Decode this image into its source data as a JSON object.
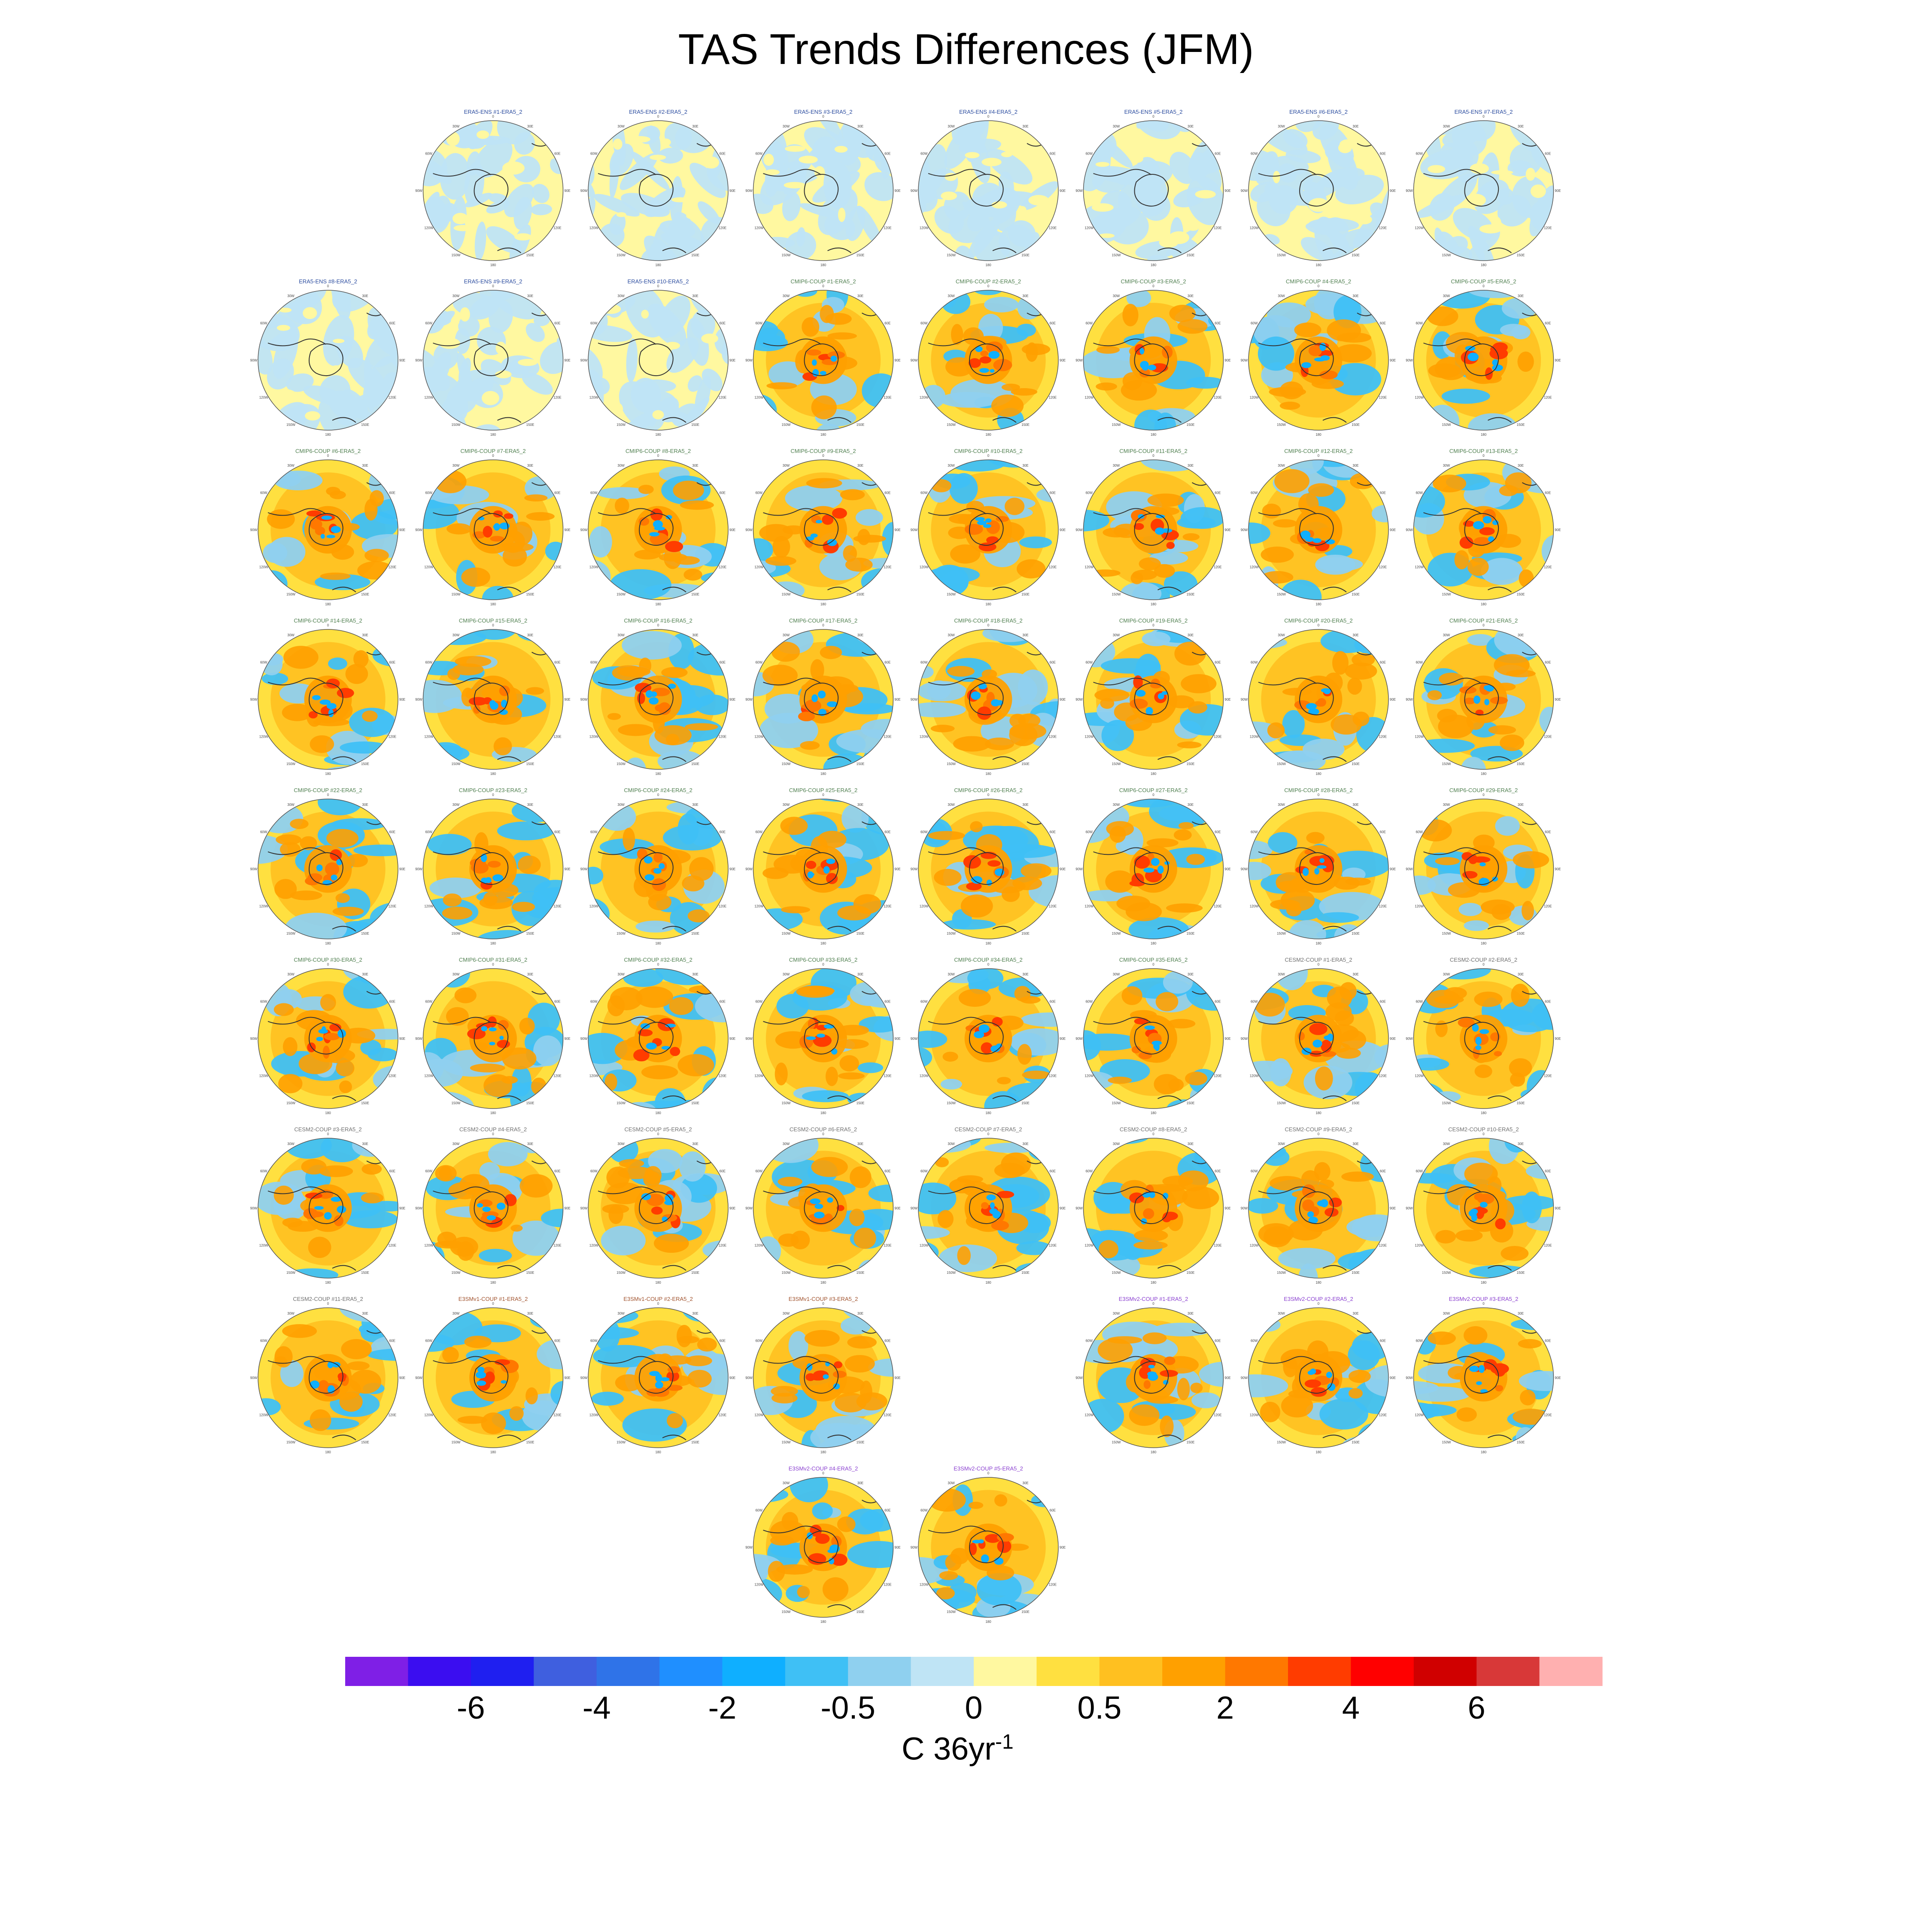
{
  "chart_data": {
    "type": "heatmap",
    "title": "TAS Trends Differences (JFM)",
    "colorbar": {
      "units_base": "C 36yr",
      "units_exponent": "-1",
      "tick_labels": [
        "-6",
        "-4",
        "-2",
        "-0.5",
        "0",
        "0.5",
        "2",
        "4",
        "6"
      ],
      "colors": [
        "#7f1fe6",
        "#3b0df0",
        "#1f1ff0",
        "#3f5fdf",
        "#2f73e8",
        "#1f8fff",
        "#0fafff",
        "#3fc0f5",
        "#8fd0ef",
        "#bfe4f5",
        "#fff8a0",
        "#ffe040",
        "#ffc020",
        "#ffa000",
        "#ff7800",
        "#ff3c00",
        "#ff0000",
        "#d00000",
        "#d83838",
        "#ffb0b0"
      ]
    },
    "panels": [
      {
        "group": "era",
        "label": "ERA5-ENS   #1-ERA5_2",
        "row": 0,
        "col": 1,
        "pattern": "weak"
      },
      {
        "group": "era",
        "label": "ERA5-ENS   #2-ERA5_2",
        "row": 0,
        "col": 2,
        "pattern": "weak"
      },
      {
        "group": "era",
        "label": "ERA5-ENS   #3-ERA5_2",
        "row": 0,
        "col": 3,
        "pattern": "weak"
      },
      {
        "group": "era",
        "label": "ERA5-ENS   #4-ERA5_2",
        "row": 0,
        "col": 4,
        "pattern": "weak"
      },
      {
        "group": "era",
        "label": "ERA5-ENS   #5-ERA5_2",
        "row": 0,
        "col": 5,
        "pattern": "weak"
      },
      {
        "group": "era",
        "label": "ERA5-ENS   #6-ERA5_2",
        "row": 0,
        "col": 6,
        "pattern": "weak"
      },
      {
        "group": "era",
        "label": "ERA5-ENS   #7-ERA5_2",
        "row": 0,
        "col": 7,
        "pattern": "weak"
      },
      {
        "group": "era",
        "label": "ERA5-ENS   #8-ERA5_2",
        "row": 1,
        "col": 0,
        "pattern": "weak"
      },
      {
        "group": "era",
        "label": "ERA5-ENS   #9-ERA5_2",
        "row": 1,
        "col": 1,
        "pattern": "weak"
      },
      {
        "group": "era",
        "label": "ERA5-ENS   #10-ERA5_2",
        "row": 1,
        "col": 2,
        "pattern": "weak"
      },
      {
        "group": "cmip",
        "label": "CMIP6-COUP   #1-ERA5_2",
        "row": 1,
        "col": 3,
        "pattern": "warm"
      },
      {
        "group": "cmip",
        "label": "CMIP6-COUP   #2-ERA5_2",
        "row": 1,
        "col": 4,
        "pattern": "warm"
      },
      {
        "group": "cmip",
        "label": "CMIP6-COUP   #3-ERA5_2",
        "row": 1,
        "col": 5,
        "pattern": "warm"
      },
      {
        "group": "cmip",
        "label": "CMIP6-COUP   #4-ERA5_2",
        "row": 1,
        "col": 6,
        "pattern": "warm"
      },
      {
        "group": "cmip",
        "label": "CMIP6-COUP   #5-ERA5_2",
        "row": 1,
        "col": 7,
        "pattern": "warm"
      },
      {
        "group": "cmip",
        "label": "CMIP6-COUP   #6-ERA5_2",
        "row": 2,
        "col": 0,
        "pattern": "warm"
      },
      {
        "group": "cmip",
        "label": "CMIP6-COUP   #7-ERA5_2",
        "row": 2,
        "col": 1,
        "pattern": "warm"
      },
      {
        "group": "cmip",
        "label": "CMIP6-COUP   #8-ERA5_2",
        "row": 2,
        "col": 2,
        "pattern": "warm"
      },
      {
        "group": "cmip",
        "label": "CMIP6-COUP   #9-ERA5_2",
        "row": 2,
        "col": 3,
        "pattern": "warm"
      },
      {
        "group": "cmip",
        "label": "CMIP6-COUP   #10-ERA5_2",
        "row": 2,
        "col": 4,
        "pattern": "warm"
      },
      {
        "group": "cmip",
        "label": "CMIP6-COUP   #11-ERA5_2",
        "row": 2,
        "col": 5,
        "pattern": "warm"
      },
      {
        "group": "cmip",
        "label": "CMIP6-COUP   #12-ERA5_2",
        "row": 2,
        "col": 6,
        "pattern": "warm"
      },
      {
        "group": "cmip",
        "label": "CMIP6-COUP   #13-ERA5_2",
        "row": 2,
        "col": 7,
        "pattern": "warm"
      },
      {
        "group": "cmip",
        "label": "CMIP6-COUP   #14-ERA5_2",
        "row": 3,
        "col": 0,
        "pattern": "warm"
      },
      {
        "group": "cmip",
        "label": "CMIP6-COUP   #15-ERA5_2",
        "row": 3,
        "col": 1,
        "pattern": "warm"
      },
      {
        "group": "cmip",
        "label": "CMIP6-COUP   #16-ERA5_2",
        "row": 3,
        "col": 2,
        "pattern": "warm"
      },
      {
        "group": "cmip",
        "label": "CMIP6-COUP   #17-ERA5_2",
        "row": 3,
        "col": 3,
        "pattern": "warm"
      },
      {
        "group": "cmip",
        "label": "CMIP6-COUP   #18-ERA5_2",
        "row": 3,
        "col": 4,
        "pattern": "warm"
      },
      {
        "group": "cmip",
        "label": "CMIP6-COUP   #19-ERA5_2",
        "row": 3,
        "col": 5,
        "pattern": "warm"
      },
      {
        "group": "cmip",
        "label": "CMIP6-COUP   #20-ERA5_2",
        "row": 3,
        "col": 6,
        "pattern": "warm"
      },
      {
        "group": "cmip",
        "label": "CMIP6-COUP   #21-ERA5_2",
        "row": 3,
        "col": 7,
        "pattern": "warm"
      },
      {
        "group": "cmip",
        "label": "CMIP6-COUP   #22-ERA5_2",
        "row": 4,
        "col": 0,
        "pattern": "warm"
      },
      {
        "group": "cmip",
        "label": "CMIP6-COUP   #23-ERA5_2",
        "row": 4,
        "col": 1,
        "pattern": "warm"
      },
      {
        "group": "cmip",
        "label": "CMIP6-COUP   #24-ERA5_2",
        "row": 4,
        "col": 2,
        "pattern": "warm"
      },
      {
        "group": "cmip",
        "label": "CMIP6-COUP   #25-ERA5_2",
        "row": 4,
        "col": 3,
        "pattern": "warm"
      },
      {
        "group": "cmip",
        "label": "CMIP6-COUP   #26-ERA5_2",
        "row": 4,
        "col": 4,
        "pattern": "warm"
      },
      {
        "group": "cmip",
        "label": "CMIP6-COUP   #27-ERA5_2",
        "row": 4,
        "col": 5,
        "pattern": "warm"
      },
      {
        "group": "cmip",
        "label": "CMIP6-COUP   #28-ERA5_2",
        "row": 4,
        "col": 6,
        "pattern": "warm"
      },
      {
        "group": "cmip",
        "label": "CMIP6-COUP   #29-ERA5_2",
        "row": 4,
        "col": 7,
        "pattern": "warm"
      },
      {
        "group": "cmip",
        "label": "CMIP6-COUP   #30-ERA5_2",
        "row": 5,
        "col": 0,
        "pattern": "warm"
      },
      {
        "group": "cmip",
        "label": "CMIP6-COUP   #31-ERA5_2",
        "row": 5,
        "col": 1,
        "pattern": "warm"
      },
      {
        "group": "cmip",
        "label": "CMIP6-COUP   #32-ERA5_2",
        "row": 5,
        "col": 2,
        "pattern": "warm"
      },
      {
        "group": "cmip",
        "label": "CMIP6-COUP   #33-ERA5_2",
        "row": 5,
        "col": 3,
        "pattern": "warm"
      },
      {
        "group": "cmip",
        "label": "CMIP6-COUP   #34-ERA5_2",
        "row": 5,
        "col": 4,
        "pattern": "warm"
      },
      {
        "group": "cmip",
        "label": "CMIP6-COUP   #35-ERA5_2",
        "row": 5,
        "col": 5,
        "pattern": "warm"
      },
      {
        "group": "cesm",
        "label": "CESM2-COUP   #1-ERA5_2",
        "row": 5,
        "col": 6,
        "pattern": "warm"
      },
      {
        "group": "cesm",
        "label": "CESM2-COUP   #2-ERA5_2",
        "row": 5,
        "col": 7,
        "pattern": "warm"
      },
      {
        "group": "cesm",
        "label": "CESM2-COUP   #3-ERA5_2",
        "row": 6,
        "col": 0,
        "pattern": "warm"
      },
      {
        "group": "cesm",
        "label": "CESM2-COUP   #4-ERA5_2",
        "row": 6,
        "col": 1,
        "pattern": "warm"
      },
      {
        "group": "cesm",
        "label": "CESM2-COUP   #5-ERA5_2",
        "row": 6,
        "col": 2,
        "pattern": "warm"
      },
      {
        "group": "cesm",
        "label": "CESM2-COUP   #6-ERA5_2",
        "row": 6,
        "col": 3,
        "pattern": "warm"
      },
      {
        "group": "cesm",
        "label": "CESM2-COUP   #7-ERA5_2",
        "row": 6,
        "col": 4,
        "pattern": "warm"
      },
      {
        "group": "cesm",
        "label": "CESM2-COUP   #8-ERA5_2",
        "row": 6,
        "col": 5,
        "pattern": "warm"
      },
      {
        "group": "cesm",
        "label": "CESM2-COUP   #9-ERA5_2",
        "row": 6,
        "col": 6,
        "pattern": "warm"
      },
      {
        "group": "cesm",
        "label": "CESM2-COUP   #10-ERA5_2",
        "row": 6,
        "col": 7,
        "pattern": "warm"
      },
      {
        "group": "cesm",
        "label": "CESM2-COUP   #11-ERA5_2",
        "row": 7,
        "col": 0,
        "pattern": "warm"
      },
      {
        "group": "e3sm1",
        "label": "E3SMv1-COUP   #1-ERA5_2",
        "row": 7,
        "col": 1,
        "pattern": "warm"
      },
      {
        "group": "e3sm1",
        "label": "E3SMv1-COUP   #2-ERA5_2",
        "row": 7,
        "col": 2,
        "pattern": "warm"
      },
      {
        "group": "e3sm1",
        "label": "E3SMv1-COUP   #3-ERA5_2",
        "row": 7,
        "col": 3,
        "pattern": "warm"
      },
      {
        "group": "e3sm2",
        "label": "E3SMv2-COUP   #1-ERA5_2",
        "row": 7,
        "col": 5,
        "pattern": "warm"
      },
      {
        "group": "e3sm2",
        "label": "E3SMv2-COUP   #2-ERA5_2",
        "row": 7,
        "col": 6,
        "pattern": "warm"
      },
      {
        "group": "e3sm2",
        "label": "E3SMv2-COUP   #3-ERA5_2",
        "row": 7,
        "col": 7,
        "pattern": "warm"
      },
      {
        "group": "e3sm2",
        "label": "E3SMv2-COUP   #4-ERA5_2",
        "row": 8,
        "col": 3,
        "pattern": "warm"
      },
      {
        "group": "e3sm2",
        "label": "E3SMv2-COUP   #5-ERA5_2",
        "row": 8,
        "col": 4,
        "pattern": "warm"
      }
    ],
    "map_tick_labels": [
      "0",
      "30E",
      "60E",
      "90E",
      "120E",
      "150E",
      "180",
      "150W",
      "120W",
      "90W",
      "60W",
      "30W"
    ]
  }
}
